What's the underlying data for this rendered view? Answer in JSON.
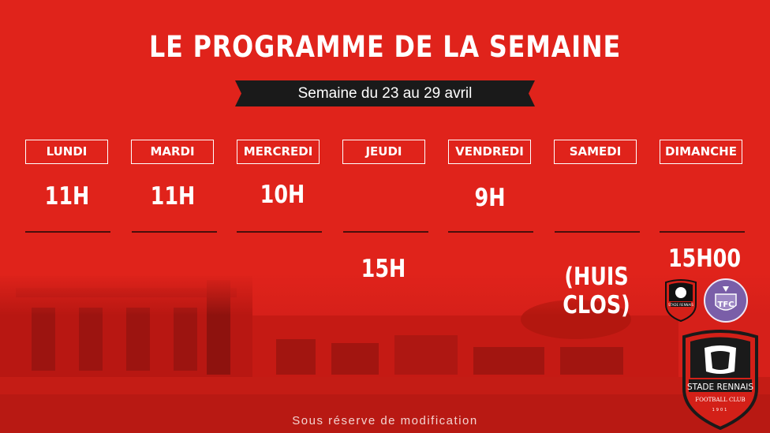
{
  "title": "LE PROGRAMME DE LA SEMAINE",
  "week": "Semaine du 23 au 29 avril",
  "days": [
    {
      "label": "LUNDI",
      "time_top": "11H",
      "time_bottom": ""
    },
    {
      "label": "MARDI",
      "time_top": "11H",
      "time_bottom": ""
    },
    {
      "label": "MERCREDI",
      "time_top": "10H",
      "time_bottom": ""
    },
    {
      "label": "JEUDI",
      "time_top": "",
      "time_bottom": "15H"
    },
    {
      "label": "VENDREDI",
      "time_top": "9H",
      "time_bottom": ""
    },
    {
      "label": "SAMEDI",
      "time_top": "",
      "time_bottom": "(HUIS CLOS)"
    },
    {
      "label": "DIMANCHE",
      "time_top": "",
      "time_bottom": "15H00"
    }
  ],
  "match": {
    "home_crest_text": "STADE RENNAIS",
    "away_crest_text": "TFC"
  },
  "brand": {
    "name": "STADE RENNAIS",
    "subtitle": "FOOTBALL CLUB",
    "year": "1901"
  },
  "footer_note": "Sous réserve de modification",
  "colors": {
    "background": "#e0231b",
    "banner": "#1a1a1a",
    "divider": "#4a0f0c",
    "tfc_purple": "#7a5ea8"
  }
}
